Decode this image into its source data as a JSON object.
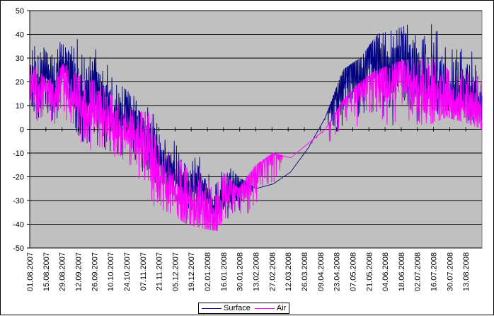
{
  "chart_data": {
    "type": "line",
    "title": "",
    "xlabel": "",
    "ylabel": "",
    "ylim": [
      -50,
      50
    ],
    "y_ticks": [
      -50,
      -40,
      -30,
      -20,
      -10,
      0,
      10,
      20,
      30,
      40,
      50
    ],
    "x_tick_labels": [
      "01.08.2007",
      "15.08.2007",
      "29.08.2007",
      "12.09.2007",
      "26.09.2007",
      "10.10.2007",
      "24.10.2007",
      "07.11.2007",
      "21.11.2007",
      "05.12.2007",
      "19.12.2007",
      "02.01.2008",
      "16.01.2008",
      "30.01.2008",
      "13.02.2008",
      "27.02.2008",
      "12.03.2008",
      "26.03.2008",
      "09.04.2008",
      "23.04.2008",
      "07.05.2008",
      "21.05.2008",
      "04.06.2008",
      "18.06.2008",
      "02.07.2008",
      "16.07.2008",
      "30.07.2008",
      "13.08.2008"
    ],
    "grid": "horizontal",
    "plot_background": "#c0c0c0",
    "legend_position": "bottom",
    "x": [
      0,
      7,
      14,
      21,
      28,
      35,
      42,
      49,
      56,
      63,
      70,
      77,
      84,
      91,
      98,
      105,
      112,
      119,
      126,
      133,
      140,
      147,
      154,
      161,
      168,
      175,
      182,
      189,
      196,
      203,
      210,
      217,
      224,
      231,
      238,
      245,
      252,
      259,
      266,
      273,
      280,
      287,
      294,
      301,
      308,
      315,
      322,
      329,
      336,
      343,
      350,
      357,
      364,
      371,
      378,
      385,
      392
    ],
    "series": [
      {
        "name": "Surface",
        "color": "#000080",
        "values": [
          20,
          15,
          25,
          13,
          27,
          23,
          18,
          10,
          18,
          12,
          7,
          3,
          7,
          3,
          -2,
          -5,
          -15,
          -16,
          -19,
          -25,
          -27,
          -23,
          -30,
          -34,
          -30,
          -25,
          -24,
          -20,
          -18,
          -10,
          -5,
          -2,
          5,
          8,
          6,
          12,
          19,
          16,
          13,
          25,
          28,
          19,
          30,
          31,
          25,
          24,
          32,
          27,
          22,
          21,
          20,
          18,
          13,
          15,
          17,
          14,
          12
        ],
        "peaks_max": [
          45,
          32,
          42,
          38,
          35,
          20,
          14,
          8,
          -2,
          -8,
          -10,
          -12,
          -20,
          -25,
          -23,
          -18,
          -8,
          5,
          25,
          30,
          40,
          42,
          45,
          50,
          47,
          37,
          34
        ],
        "troughs_min": [
          10,
          0,
          8,
          -5,
          -8,
          -10,
          -15,
          -22,
          -28,
          -33,
          -35,
          -36,
          -40,
          -37,
          -35,
          -33,
          -30,
          -20,
          -12,
          -8,
          -5,
          0,
          2,
          5,
          8,
          5,
          0
        ]
      },
      {
        "name": "Air",
        "color": "#ff00ff",
        "values": [
          21,
          12,
          20,
          12,
          22,
          15,
          13,
          3,
          11,
          6,
          2,
          -2,
          3,
          -3,
          -7,
          -10,
          -20,
          -24,
          -28,
          -30,
          -32,
          -30,
          -35,
          -40,
          -28,
          -25,
          -25,
          -22,
          -20,
          -12,
          -8,
          -5,
          2,
          5,
          3,
          8,
          13,
          10,
          10,
          18,
          20,
          15,
          22,
          23,
          18,
          18,
          25,
          20,
          16,
          15,
          15,
          13,
          10,
          10,
          12,
          10,
          8
        ],
        "peaks_max": [
          31,
          20,
          28,
          22,
          20,
          12,
          8,
          7,
          -5,
          -10,
          -15,
          -17,
          -25,
          -15,
          -10,
          -12,
          -6,
          0,
          12,
          20,
          25,
          28,
          30,
          33,
          34,
          30,
          30
        ],
        "troughs_min": [
          8,
          -2,
          2,
          -8,
          -12,
          -15,
          -22,
          -32,
          -35,
          -40,
          -42,
          -43,
          -49,
          -40,
          -38,
          -36,
          -35,
          -28,
          -15,
          -10,
          -8,
          -3,
          0,
          2,
          5,
          3,
          0
        ]
      }
    ]
  }
}
